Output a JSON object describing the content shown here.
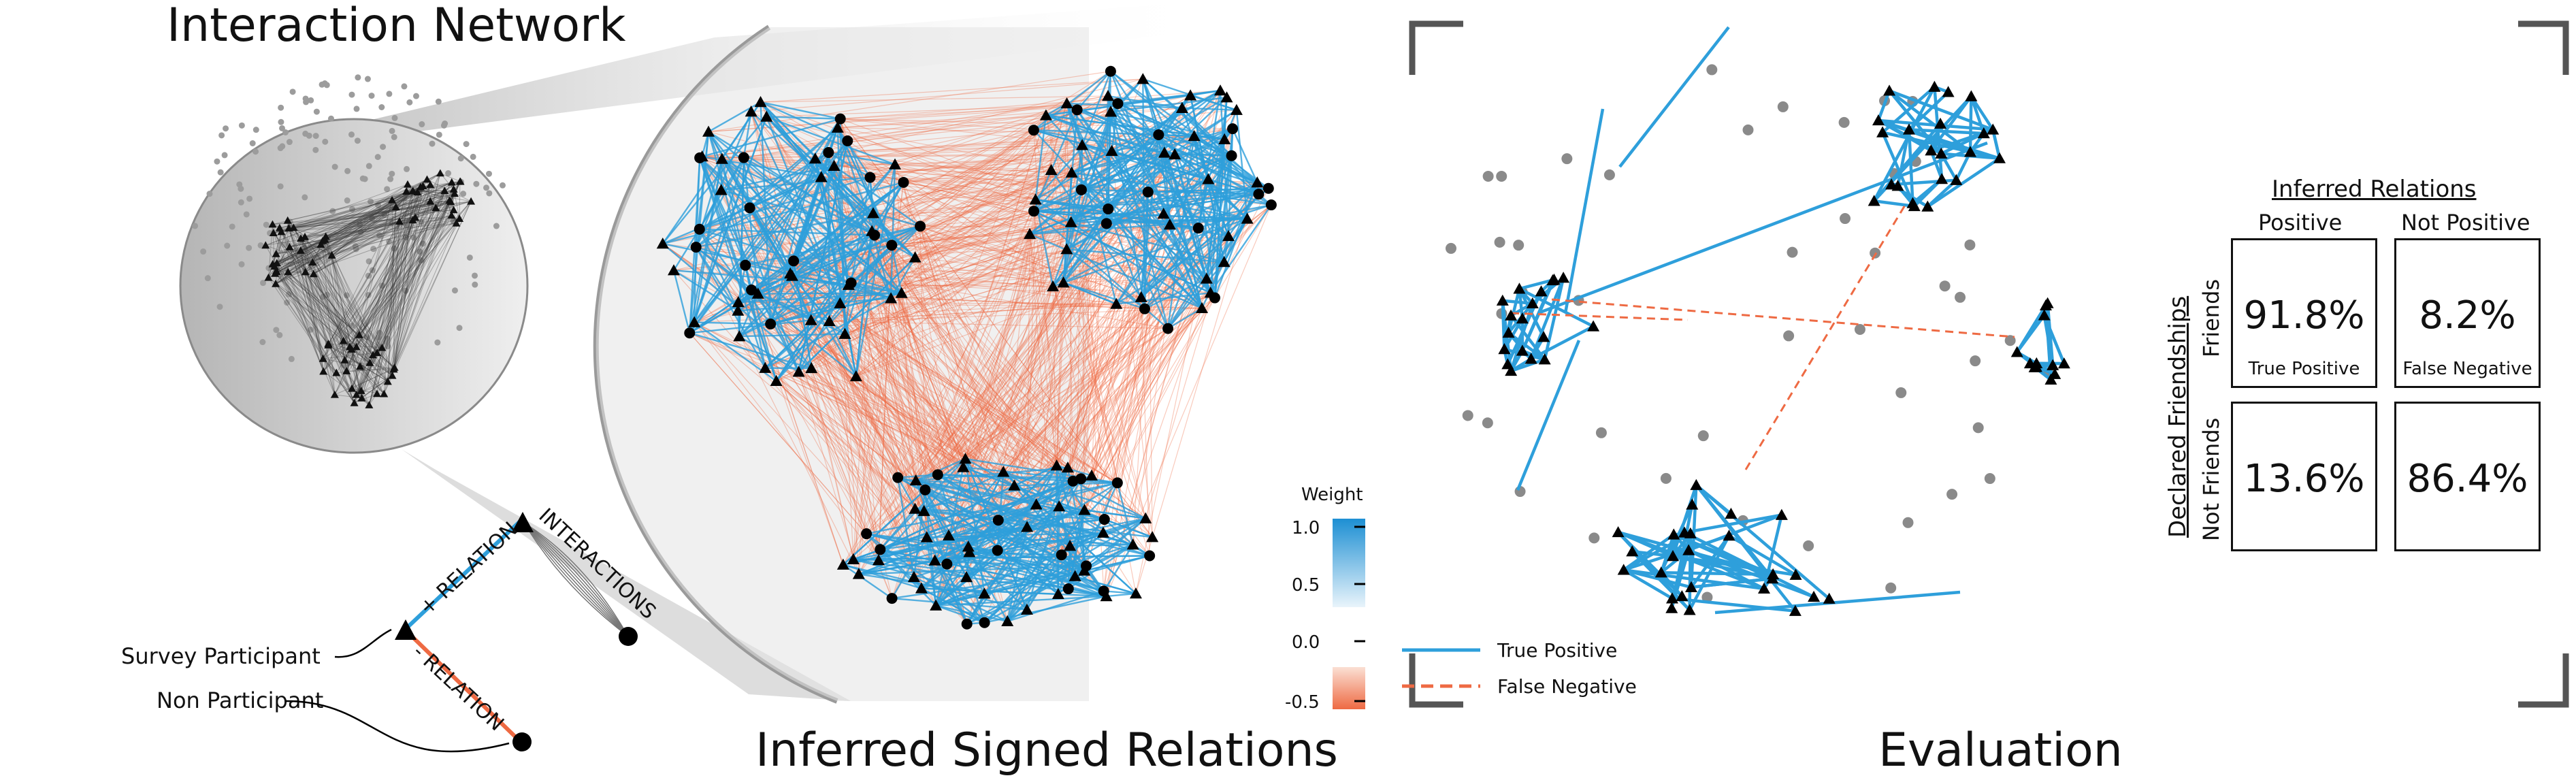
{
  "titles": {
    "interaction": "Interaction Network",
    "inferred": "Inferred Signed Relations",
    "evaluation": "Evaluation"
  },
  "schematic": {
    "pos_relation": "+ RELATION",
    "neg_relation": "- RELATION",
    "interactions": "INTERACTIONS",
    "survey_participant": "Survey Participant",
    "non_participant": "Non Participant"
  },
  "weight_legend": {
    "title": "Weight",
    "ticks": [
      "1.0",
      "0.5",
      "0.0",
      "-0.5"
    ],
    "pos_color": "#2e9fdb",
    "neg_color": "#ee6a43"
  },
  "eval_legend": {
    "true_positive": "True Positive",
    "false_negative": "False Negative"
  },
  "matrix": {
    "top_title": "Inferred Relations",
    "col_positive": "Positive",
    "col_not_positive": "Not Positive",
    "side_title": "Declared Friendships",
    "row_friends": "Friends",
    "row_not_friends": "Not Friends",
    "cells": {
      "tp_value": "91.8%",
      "tp_label": "True Positive",
      "fn_value": "8.2%",
      "fn_label": "False Negative",
      "fp_value": "13.6%",
      "tn_value": "86.4%"
    }
  }
}
